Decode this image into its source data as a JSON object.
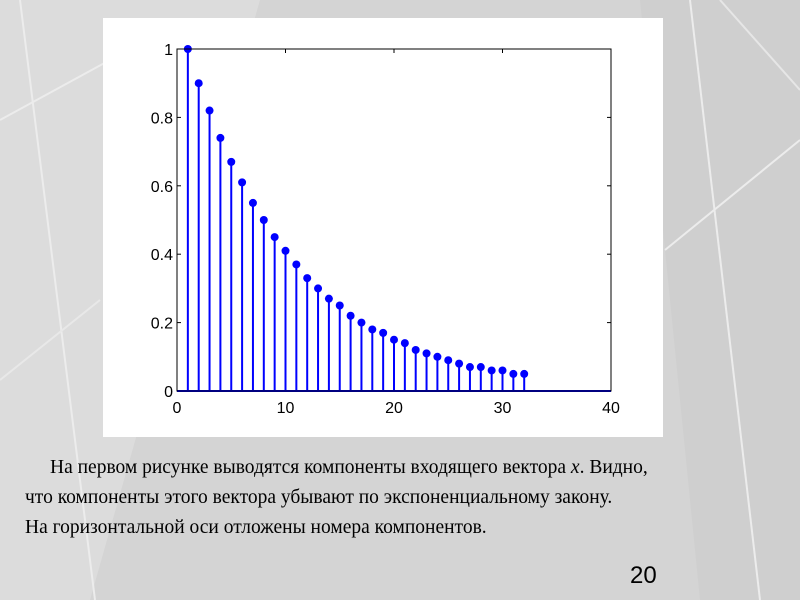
{
  "chart_data": {
    "type": "stem",
    "x": [
      1,
      2,
      3,
      4,
      5,
      6,
      7,
      8,
      9,
      10,
      11,
      12,
      13,
      14,
      15,
      16,
      17,
      18,
      19,
      20,
      21,
      22,
      23,
      24,
      25,
      26,
      27,
      28,
      29,
      30,
      31,
      32
    ],
    "values": [
      1,
      0.9,
      0.82,
      0.74,
      0.67,
      0.61,
      0.55,
      0.5,
      0.45,
      0.41,
      0.37,
      0.33,
      0.3,
      0.27,
      0.25,
      0.22,
      0.2,
      0.18,
      0.17,
      0.15,
      0.14,
      0.12,
      0.11,
      0.1,
      0.09,
      0.08,
      0.07,
      0.07,
      0.06,
      0.06,
      0.05,
      0.05
    ],
    "color": "#0000ff",
    "xlim": [
      0,
      40
    ],
    "ylim": [
      0,
      1
    ],
    "xticks": [
      0,
      10,
      20,
      30,
      40
    ],
    "yticks": [
      0,
      0.2,
      0.4,
      0.6,
      0.8,
      1
    ]
  },
  "text": {
    "paragraphs": [
      [
        "На первом рисунке выводятся компоненты входящего вектора ",
        "x",
        ". Видно, что компоненты этого вектора убывают по экспоненциальному закону."
      ],
      [
        "На горизонтальной оси отложены номера компонентов."
      ]
    ]
  },
  "page_number": "20"
}
